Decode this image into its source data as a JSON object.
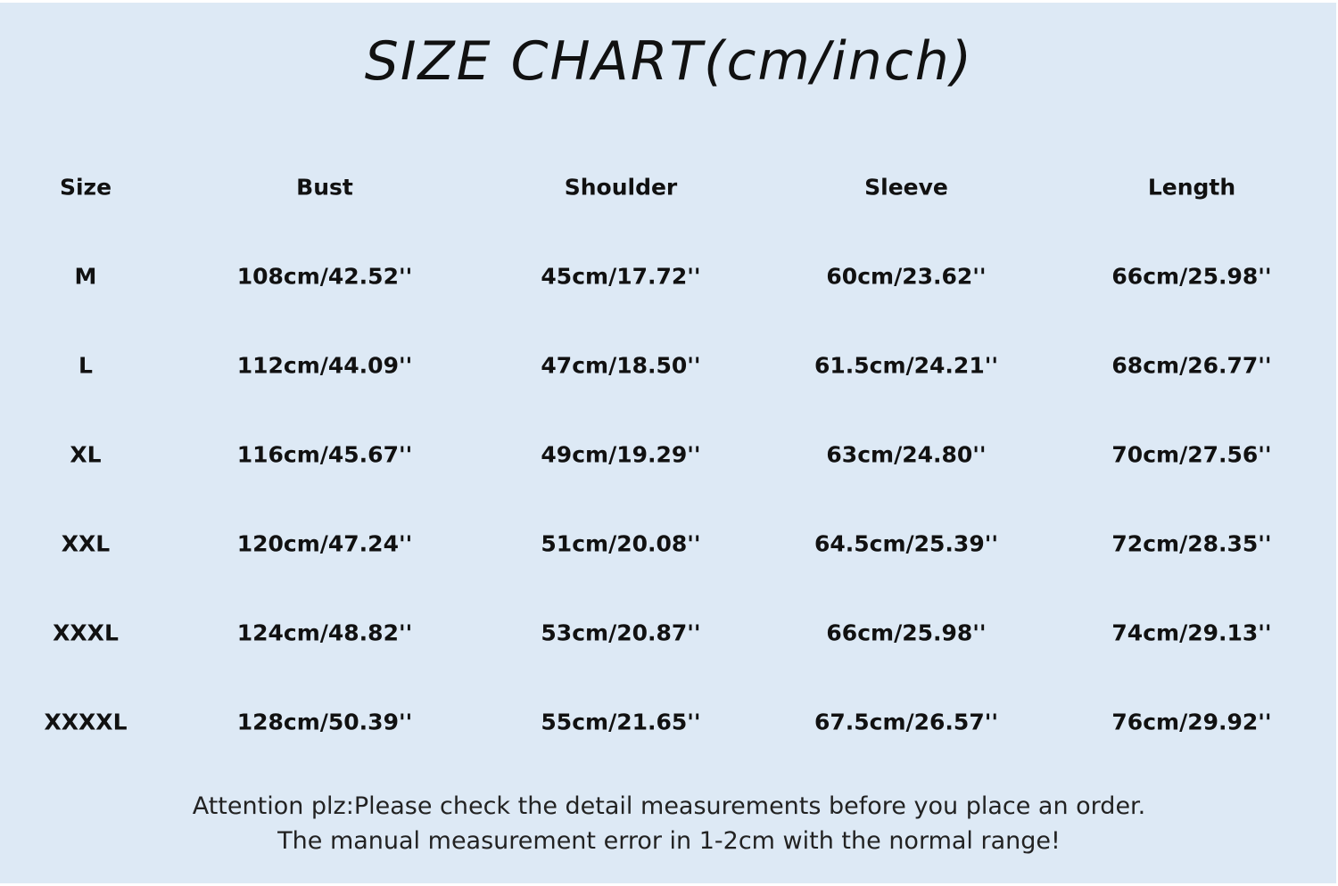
{
  "title": "SIZE CHART(cm/inch)",
  "table": {
    "headers": [
      "Size",
      "Bust",
      "Shoulder",
      "Sleeve",
      "Length"
    ],
    "rows": [
      [
        "M",
        "108cm/42.52''",
        "45cm/17.72''",
        "60cm/23.62''",
        "66cm/25.98''"
      ],
      [
        "L",
        "112cm/44.09''",
        "47cm/18.50''",
        "61.5cm/24.21''",
        "68cm/26.77''"
      ],
      [
        "XL",
        "116cm/45.67''",
        "49cm/19.29''",
        "63cm/24.80''",
        "70cm/27.56''"
      ],
      [
        "XXL",
        "120cm/47.24''",
        "51cm/20.08''",
        "64.5cm/25.39''",
        "72cm/28.35''"
      ],
      [
        "XXXL",
        "124cm/48.82''",
        "53cm/20.87''",
        "66cm/25.98''",
        "74cm/29.13''"
      ],
      [
        "XXXXL",
        "128cm/50.39''",
        "55cm/21.65''",
        "67.5cm/26.57''",
        "76cm/29.92''"
      ]
    ]
  },
  "footer": {
    "line1": "Attention plz:Please check the detail measurements before you place an order.",
    "line2": "The manual measurement error in 1-2cm with the normal range!"
  },
  "colors": {
    "background": "#dde9f5",
    "text": "#111111"
  }
}
